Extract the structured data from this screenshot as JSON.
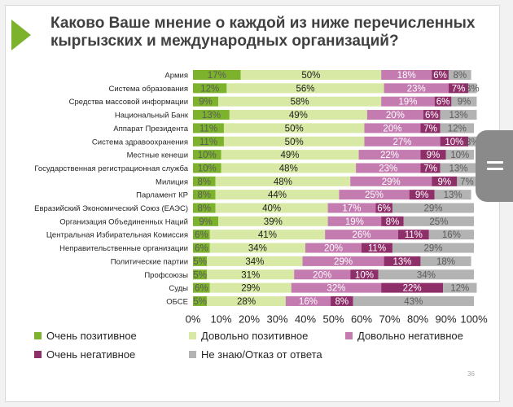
{
  "slide": {
    "title": "Каково Ваше мнение о каждой из ниже перечисленных кыргызских и международных организаций?",
    "page_number": "36"
  },
  "chart_data": {
    "type": "bar",
    "stacked": true,
    "orientation": "horizontal",
    "title": "Каково Ваше мнение о каждой из ниже перечисленных кыргызских и международных организаций?",
    "xlim": [
      0,
      100
    ],
    "x_ticks": [
      "0%",
      "10%",
      "20%",
      "30%",
      "40%",
      "50%",
      "60%",
      "70%",
      "80%",
      "90%",
      "100%"
    ],
    "legend_position": "bottom",
    "grid": false,
    "categories": [
      "Армия",
      "Система образования",
      "Средства массовой информации",
      "Национальный Банк",
      "Аппарат Президента",
      "Система здравоохранения",
      "Местные кенеши",
      "Государственная регистрационная служба",
      "Милиция",
      "Парламент КР",
      "Евразийский Экономический Союз (ЕАЭС)",
      "Организация Объединенных Наций",
      "Центральная Избирательная Комиссия",
      "Неправительственные организации",
      "Политические партии",
      "Профсоюзы",
      "Суды",
      "ОБСЕ"
    ],
    "series": [
      {
        "name": "Очень позитивное",
        "color": "#7db32c",
        "values": [
          17,
          12,
          9,
          13,
          11,
          11,
          10,
          10,
          8,
          8,
          8,
          9,
          6,
          6,
          5,
          5,
          6,
          5
        ]
      },
      {
        "name": "Довольно позитивное",
        "color": "#d7e9a4",
        "values": [
          50,
          56,
          58,
          49,
          50,
          50,
          49,
          48,
          48,
          44,
          40,
          39,
          41,
          34,
          34,
          31,
          29,
          28
        ]
      },
      {
        "name": "Довольно негативное",
        "color": "#c47bb0",
        "values": [
          18,
          23,
          19,
          20,
          20,
          27,
          22,
          23,
          29,
          25,
          17,
          19,
          26,
          20,
          29,
          20,
          32,
          16
        ]
      },
      {
        "name": "Очень негативное",
        "color": "#8f2f6a",
        "values": [
          6,
          7,
          6,
          6,
          7,
          10,
          9,
          7,
          9,
          9,
          6,
          8,
          11,
          11,
          13,
          10,
          22,
          8
        ]
      },
      {
        "name": "Не знаю/Отказ от ответа",
        "color": "#b3b3b3",
        "values": [
          8,
          3,
          9,
          13,
          12,
          3,
          10,
          13,
          7,
          13,
          29,
          25,
          16,
          29,
          18,
          34,
          12,
          43
        ]
      }
    ]
  }
}
